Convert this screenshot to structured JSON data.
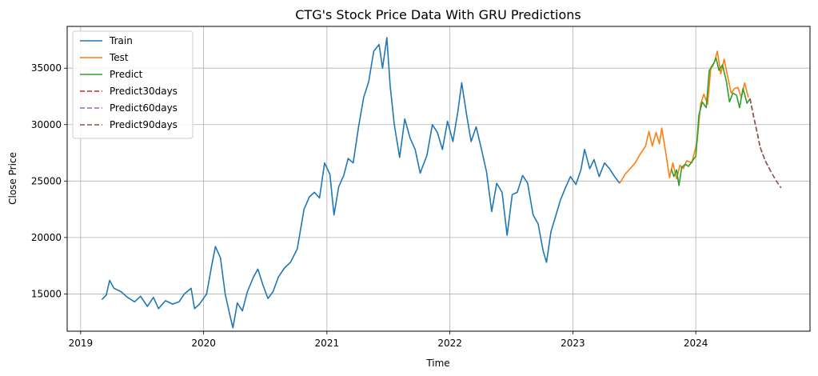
{
  "chart_data": {
    "type": "line",
    "title": "CTG's Stock Price Data With GRU Predictions",
    "xlabel": "Time",
    "ylabel": "Close Price",
    "xlim": [
      "2018-11-22",
      "2024-12-05"
    ],
    "ylim": [
      11700,
      38700
    ],
    "x_ticks": [
      {
        "date": "2019-01-01",
        "label": "2019"
      },
      {
        "date": "2020-01-01",
        "label": "2020"
      },
      {
        "date": "2021-01-01",
        "label": "2021"
      },
      {
        "date": "2022-01-01",
        "label": "2022"
      },
      {
        "date": "2023-01-01",
        "label": "2023"
      },
      {
        "date": "2024-01-01",
        "label": "2024"
      }
    ],
    "y_ticks": [
      15000,
      20000,
      25000,
      30000,
      35000
    ],
    "grid": true,
    "legend": "top-left",
    "series": [
      {
        "name": "Train",
        "color": "#1f77b4",
        "dash": false,
        "points": [
          [
            "2019-03-05",
            14500
          ],
          [
            "2019-03-18",
            14900
          ],
          [
            "2019-03-28",
            16200
          ],
          [
            "2019-04-10",
            15500
          ],
          [
            "2019-05-01",
            15200
          ],
          [
            "2019-05-20",
            14700
          ],
          [
            "2019-06-10",
            14300
          ],
          [
            "2019-06-28",
            14800
          ],
          [
            "2019-07-18",
            13900
          ],
          [
            "2019-08-05",
            14700
          ],
          [
            "2019-08-20",
            13700
          ],
          [
            "2019-09-10",
            14400
          ],
          [
            "2019-10-01",
            14100
          ],
          [
            "2019-10-20",
            14300
          ],
          [
            "2019-11-05",
            15000
          ],
          [
            "2019-11-25",
            15500
          ],
          [
            "2019-12-05",
            13700
          ],
          [
            "2019-12-20",
            14100
          ],
          [
            "2020-01-10",
            15000
          ],
          [
            "2020-01-25",
            17500
          ],
          [
            "2020-02-05",
            19200
          ],
          [
            "2020-02-20",
            18200
          ],
          [
            "2020-03-05",
            15000
          ],
          [
            "2020-03-20",
            13000
          ],
          [
            "2020-03-28",
            12000
          ],
          [
            "2020-04-10",
            14200
          ],
          [
            "2020-04-25",
            13500
          ],
          [
            "2020-05-10",
            15200
          ],
          [
            "2020-05-28",
            16500
          ],
          [
            "2020-06-10",
            17200
          ],
          [
            "2020-06-25",
            15800
          ],
          [
            "2020-07-10",
            14600
          ],
          [
            "2020-07-25",
            15200
          ],
          [
            "2020-08-10",
            16500
          ],
          [
            "2020-08-28",
            17300
          ],
          [
            "2020-09-15",
            17800
          ],
          [
            "2020-10-05",
            19000
          ],
          [
            "2020-10-25",
            22500
          ],
          [
            "2020-11-10",
            23600
          ],
          [
            "2020-11-25",
            24000
          ],
          [
            "2020-12-10",
            23500
          ],
          [
            "2020-12-25",
            26600
          ],
          [
            "2021-01-10",
            25600
          ],
          [
            "2021-01-22",
            22000
          ],
          [
            "2021-02-05",
            24500
          ],
          [
            "2021-02-20",
            25500
          ],
          [
            "2021-03-05",
            27000
          ],
          [
            "2021-03-20",
            26600
          ],
          [
            "2021-04-05",
            29800
          ],
          [
            "2021-04-20",
            32400
          ],
          [
            "2021-05-05",
            33800
          ],
          [
            "2021-05-20",
            36500
          ],
          [
            "2021-06-05",
            37100
          ],
          [
            "2021-06-15",
            35000
          ],
          [
            "2021-06-28",
            37700
          ],
          [
            "2021-07-08",
            33400
          ],
          [
            "2021-07-20",
            30000
          ],
          [
            "2021-08-05",
            27100
          ],
          [
            "2021-08-20",
            30500
          ],
          [
            "2021-09-05",
            28800
          ],
          [
            "2021-09-20",
            27800
          ],
          [
            "2021-10-05",
            25700
          ],
          [
            "2021-10-25",
            27300
          ],
          [
            "2021-11-10",
            30000
          ],
          [
            "2021-11-25",
            29300
          ],
          [
            "2021-12-10",
            27800
          ],
          [
            "2021-12-25",
            30300
          ],
          [
            "2022-01-10",
            28500
          ],
          [
            "2022-01-25",
            31200
          ],
          [
            "2022-02-05",
            33700
          ],
          [
            "2022-02-20",
            30800
          ],
          [
            "2022-03-05",
            28500
          ],
          [
            "2022-03-20",
            29800
          ],
          [
            "2022-04-05",
            27800
          ],
          [
            "2022-04-20",
            25800
          ],
          [
            "2022-05-05",
            22300
          ],
          [
            "2022-05-20",
            24800
          ],
          [
            "2022-06-05",
            24000
          ],
          [
            "2022-06-20",
            20200
          ],
          [
            "2022-07-05",
            23800
          ],
          [
            "2022-07-20",
            24000
          ],
          [
            "2022-08-05",
            25500
          ],
          [
            "2022-08-20",
            24800
          ],
          [
            "2022-09-05",
            22000
          ],
          [
            "2022-09-20",
            21200
          ],
          [
            "2022-10-05",
            18800
          ],
          [
            "2022-10-15",
            17800
          ],
          [
            "2022-10-28",
            20500
          ],
          [
            "2022-11-10",
            21800
          ],
          [
            "2022-11-25",
            23300
          ],
          [
            "2022-12-10",
            24400
          ],
          [
            "2022-12-25",
            25400
          ],
          [
            "2023-01-10",
            24700
          ],
          [
            "2023-01-25",
            26000
          ],
          [
            "2023-02-05",
            27800
          ],
          [
            "2023-02-20",
            26100
          ],
          [
            "2023-03-05",
            26900
          ],
          [
            "2023-03-20",
            25400
          ],
          [
            "2023-04-05",
            26600
          ],
          [
            "2023-04-20",
            26100
          ],
          [
            "2023-05-05",
            25400
          ],
          [
            "2023-05-20",
            24800
          ]
        ]
      },
      {
        "name": "Test",
        "color": "#ff7f0e",
        "dash": false,
        "points": [
          [
            "2023-05-20",
            24800
          ],
          [
            "2023-06-05",
            25600
          ],
          [
            "2023-06-20",
            26100
          ],
          [
            "2023-07-05",
            26600
          ],
          [
            "2023-07-20",
            27400
          ],
          [
            "2023-08-05",
            28100
          ],
          [
            "2023-08-15",
            29400
          ],
          [
            "2023-08-25",
            28100
          ],
          [
            "2023-09-05",
            29300
          ],
          [
            "2023-09-15",
            28300
          ],
          [
            "2023-09-22",
            29700
          ],
          [
            "2023-10-05",
            27300
          ],
          [
            "2023-10-15",
            25300
          ],
          [
            "2023-10-25",
            26600
          ],
          [
            "2023-11-05",
            25200
          ],
          [
            "2023-11-15",
            26400
          ],
          [
            "2023-11-25",
            26100
          ],
          [
            "2023-12-05",
            26800
          ],
          [
            "2023-12-20",
            26600
          ],
          [
            "2024-01-05",
            28500
          ],
          [
            "2024-01-15",
            31800
          ],
          [
            "2024-01-25",
            32700
          ],
          [
            "2024-02-05",
            31800
          ],
          [
            "2024-02-15",
            35100
          ],
          [
            "2024-02-25",
            35500
          ],
          [
            "2024-03-05",
            36500
          ],
          [
            "2024-03-15",
            34500
          ],
          [
            "2024-03-25",
            35800
          ],
          [
            "2024-04-05",
            34200
          ],
          [
            "2024-04-15",
            32800
          ],
          [
            "2024-04-25",
            33200
          ],
          [
            "2024-05-05",
            33300
          ],
          [
            "2024-05-15",
            32400
          ],
          [
            "2024-05-25",
            33700
          ],
          [
            "2024-06-05",
            32400
          ]
        ]
      },
      {
        "name": "Predict",
        "color": "#2ca02c",
        "dash": false,
        "points": [
          [
            "2023-10-20",
            26100
          ],
          [
            "2023-10-28",
            25400
          ],
          [
            "2023-11-05",
            26000
          ],
          [
            "2023-11-12",
            24600
          ],
          [
            "2023-11-20",
            26200
          ],
          [
            "2023-12-01",
            26500
          ],
          [
            "2023-12-10",
            26300
          ],
          [
            "2023-12-20",
            26700
          ],
          [
            "2024-01-01",
            27200
          ],
          [
            "2024-01-10",
            30800
          ],
          [
            "2024-01-20",
            32000
          ],
          [
            "2024-02-01",
            31500
          ],
          [
            "2024-02-10",
            34800
          ],
          [
            "2024-02-20",
            35200
          ],
          [
            "2024-03-01",
            35900
          ],
          [
            "2024-03-10",
            34800
          ],
          [
            "2024-03-20",
            35300
          ],
          [
            "2024-04-01",
            33800
          ],
          [
            "2024-04-10",
            32000
          ],
          [
            "2024-04-20",
            32800
          ],
          [
            "2024-05-01",
            32600
          ],
          [
            "2024-05-10",
            31500
          ],
          [
            "2024-05-20",
            33200
          ],
          [
            "2024-06-01",
            31900
          ],
          [
            "2024-06-10",
            32300
          ]
        ]
      },
      {
        "name": "Predict30days",
        "color": "#d62728",
        "dash": true,
        "points": [
          [
            "2024-06-10",
            32300
          ],
          [
            "2024-06-20",
            30800
          ],
          [
            "2024-07-01",
            29300
          ],
          [
            "2024-07-10",
            28000
          ]
        ]
      },
      {
        "name": "Predict60days",
        "color": "#9467bd",
        "dash": true,
        "points": [
          [
            "2024-07-10",
            28000
          ],
          [
            "2024-07-25",
            26800
          ],
          [
            "2024-08-10",
            25900
          ]
        ]
      },
      {
        "name": "Predict90days",
        "color": "#8c564b",
        "dash": true,
        "points": [
          [
            "2024-06-10",
            32300
          ],
          [
            "2024-06-20",
            30800
          ],
          [
            "2024-07-01",
            29300
          ],
          [
            "2024-07-10",
            28000
          ],
          [
            "2024-07-25",
            26800
          ],
          [
            "2024-08-10",
            25900
          ],
          [
            "2024-08-25",
            25100
          ],
          [
            "2024-09-10",
            24400
          ]
        ]
      }
    ]
  }
}
